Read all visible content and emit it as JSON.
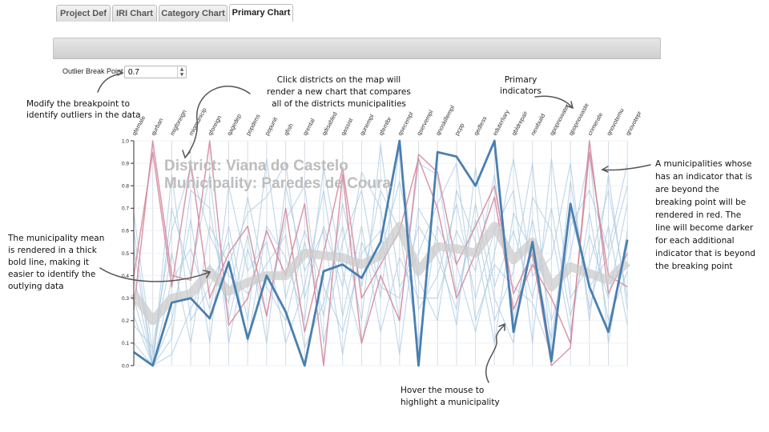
{
  "tabs": [
    {
      "label": "Project Def",
      "active": false
    },
    {
      "label": "IRI Chart",
      "active": false
    },
    {
      "label": "Category Chart",
      "active": false
    },
    {
      "label": "Primary Chart",
      "active": true
    }
  ],
  "outlier": {
    "label": "Outlier Break Point",
    "value": "0.7"
  },
  "overlay": {
    "district": "District: Viana do Castelo",
    "municipality": "Municipality: Paredes de Coura"
  },
  "annotations": {
    "breakpoint": [
      "Modify the breakpoint to",
      "identify outliers in the data"
    ],
    "districts": [
      "Click districts on the map will",
      "render a new chart that compares",
      "all of the districts municipalities"
    ],
    "primary": [
      "Primary",
      "indicators"
    ],
    "outliers": [
      "A municipalities whose",
      "has an indicator that is",
      "are beyond the",
      "breaking point will be",
      "rendered in red. The",
      "line will become darker",
      "for each additional",
      "indicator that is beyond",
      "the breaking point"
    ],
    "mean": [
      "The municipality mean",
      "is rendered in a thick",
      "bold line, making it",
      "easier to identify the",
      "outlying data"
    ],
    "hover": [
      "Hover the mouse to",
      "highlight a municipality"
    ]
  },
  "colors": {
    "highlight": "#4a7fb0",
    "background_line": "#a9c8e0",
    "outlier": "#d4869a",
    "mean": "#cccccc"
  },
  "chart_data": {
    "type": "line",
    "variant": "parallel-coordinates",
    "ylim": [
      0,
      1
    ],
    "yticks": [
      "0.0",
      "0.1",
      "0.2",
      "0.3",
      "0.4",
      "0.5",
      "0.6",
      "0.7",
      "0.8",
      "0.9",
      "1.0"
    ],
    "categories": [
      "qfemale",
      "qurban",
      "migforeign",
      "migmunicip",
      "qforeign",
      "qagedep",
      "popdens",
      "popunit",
      "qfish",
      "qrental",
      "qdisabled",
      "qassist",
      "qunempl",
      "qfemlbr",
      "qsecempl",
      "qservempl",
      "qnoskillempl",
      "pcpp",
      "qedless",
      "eduterliary",
      "qbldrepair",
      "newbuild",
      "qpopnowater",
      "qpopnowaste",
      "crimerate",
      "qnovotemu",
      "qnovotepr"
    ],
    "series": [
      {
        "role": "highlight",
        "values": [
          0.06,
          0.0,
          0.28,
          0.3,
          0.21,
          0.46,
          0.12,
          0.4,
          0.24,
          0.0,
          0.42,
          0.45,
          0.39,
          0.55,
          1.0,
          0.0,
          0.95,
          0.93,
          0.8,
          1.0,
          0.15,
          0.55,
          0.02,
          0.72,
          0.35,
          0.15,
          0.56
        ]
      },
      {
        "role": "mean",
        "values": [
          0.32,
          0.2,
          0.3,
          0.32,
          0.42,
          0.33,
          0.37,
          0.4,
          0.4,
          0.5,
          0.49,
          0.48,
          0.45,
          0.49,
          0.62,
          0.42,
          0.53,
          0.52,
          0.5,
          0.62,
          0.47,
          0.55,
          0.35,
          0.44,
          0.41,
          0.38,
          0.46
        ]
      },
      {
        "role": "outlier",
        "values": [
          0.25,
          1.0,
          0.4,
          0.38,
          1.0,
          0.18,
          0.3,
          0.6,
          0.4,
          0.72,
          0.0,
          0.85,
          0.1,
          0.4,
          0.2,
          0.94,
          0.86,
          0.45,
          0.62,
          0.8,
          0.32,
          0.5,
          0.0,
          0.08,
          1.0,
          0.32,
          0.5
        ]
      },
      {
        "role": "outlier",
        "values": [
          0.4,
          0.95,
          0.35,
          0.9,
          0.3,
          0.5,
          0.62,
          0.22,
          0.7,
          0.15,
          0.5,
          0.88,
          0.3,
          0.45,
          0.6,
          0.92,
          0.7,
          0.3,
          0.5,
          0.75,
          0.25,
          0.45,
          0.3,
          0.1,
          0.95,
          0.4,
          0.35
        ]
      },
      {
        "role": "other",
        "values": [
          0.68,
          0.05,
          0.5,
          0.1,
          0.62,
          0.45,
          0.68,
          0.75,
          0.9,
          0.3,
          0.62,
          0.35,
          0.86,
          0.7,
          0.2,
          0.9,
          0.85,
          0.32,
          0.65,
          0.2,
          0.42,
          0.9,
          0.05,
          0.62,
          0.78,
          0.52,
          0.9
        ]
      },
      {
        "role": "other",
        "values": [
          0.18,
          0.08,
          0.6,
          0.88,
          0.58,
          0.4,
          0.32,
          0.45,
          0.58,
          0.08,
          0.28,
          0.62,
          0.2,
          0.98,
          0.35,
          0.5,
          0.72,
          0.9,
          0.2,
          0.45,
          0.35,
          0.28,
          0.05,
          0.82,
          0.25,
          0.62,
          0.18
        ]
      },
      {
        "role": "other",
        "values": [
          0.4,
          0.0,
          0.7,
          0.4,
          0.85,
          0.1,
          0.52,
          0.22,
          0.65,
          0.8,
          0.1,
          0.55,
          0.78,
          0.3,
          0.98,
          0.25,
          0.4,
          0.72,
          0.3,
          0.6,
          0.78,
          0.1,
          0.92,
          0.3,
          0.45,
          0.78,
          0.3
        ]
      },
      {
        "role": "other",
        "values": [
          0.1,
          0.0,
          0.38,
          0.52,
          0.25,
          0.62,
          0.2,
          0.92,
          0.3,
          0.6,
          0.35,
          0.15,
          0.5,
          0.6,
          0.05,
          0.7,
          0.55,
          0.18,
          0.88,
          0.35,
          0.6,
          0.3,
          0.7,
          0.22,
          0.58,
          0.3,
          0.72
        ]
      },
      {
        "role": "other",
        "values": [
          0.52,
          0.0,
          0.2,
          0.65,
          0.1,
          0.8,
          0.42,
          0.55,
          0.1,
          0.35,
          0.78,
          0.22,
          0.62,
          0.15,
          0.48,
          0.3,
          0.3,
          0.6,
          0.42,
          0.85,
          0.2,
          0.65,
          0.2,
          0.5,
          0.95,
          0.1,
          0.6
        ]
      },
      {
        "role": "other",
        "values": [
          0.3,
          0.0,
          0.05,
          0.25,
          0.45,
          0.28,
          0.75,
          0.35,
          0.2,
          0.55,
          0.22,
          0.72,
          0.35,
          0.78,
          0.6,
          0.1,
          0.62,
          0.45,
          0.15,
          0.5,
          0.92,
          0.4,
          0.48,
          0.9,
          0.2,
          0.85,
          0.25
        ]
      },
      {
        "role": "other",
        "values": [
          0.6,
          0.0,
          0.85,
          0.2,
          0.35,
          0.55,
          0.1,
          0.62,
          0.48,
          0.2,
          0.88,
          0.42,
          0.1,
          0.5,
          0.82,
          0.38,
          0.2,
          0.78,
          0.55,
          0.1,
          0.68,
          0.5,
          0.12,
          0.68,
          0.35,
          0.48,
          0.8
        ]
      },
      {
        "role": "other",
        "values": [
          0.22,
          0.0,
          0.12,
          0.78,
          0.7,
          0.2,
          0.58,
          0.1,
          0.8,
          0.42,
          0.6,
          0.05,
          0.55,
          0.35,
          0.3,
          0.62,
          0.48,
          0.25,
          0.72,
          0.3,
          0.1,
          0.75,
          0.6,
          0.15,
          0.68,
          0.2,
          0.42
        ]
      }
    ]
  }
}
